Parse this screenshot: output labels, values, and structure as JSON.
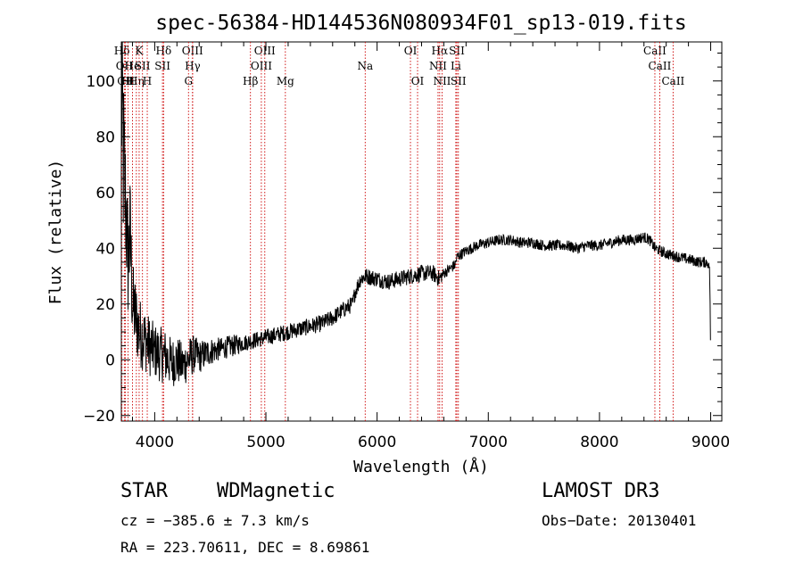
{
  "chart_data": {
    "type": "line",
    "title": "spec-56384-HD144536N080934F01_sp13-019.fits",
    "xlabel": "Wavelength (Å)",
    "ylabel": "Flux (relative)",
    "xlim": [
      3700,
      9100
    ],
    "ylim": [
      -22,
      114
    ],
    "x_ticks": [
      4000,
      5000,
      6000,
      7000,
      8000,
      9000
    ],
    "x_tick_labels": [
      "4000",
      "5000",
      "6000",
      "7000",
      "8000",
      "9000"
    ],
    "y_ticks": [
      -20,
      0,
      20,
      40,
      60,
      80,
      100
    ],
    "y_tick_labels": [
      "−20",
      "0",
      "20",
      "40",
      "60",
      "80",
      "100"
    ],
    "grid": false,
    "series": [
      {
        "name": "spectrum",
        "x": [
          3700,
          3720,
          3740,
          3760,
          3780,
          3800,
          3830,
          3860,
          3900,
          3950,
          4000,
          4050,
          4100,
          4150,
          4200,
          4250,
          4300,
          4350,
          4400,
          4500,
          4600,
          4700,
          4800,
          4900,
          5000,
          5100,
          5200,
          5300,
          5400,
          5500,
          5600,
          5700,
          5780,
          5800,
          5830,
          5850,
          5900,
          6000,
          6100,
          6200,
          6300,
          6400,
          6500,
          6560,
          6600,
          6700,
          6720,
          6800,
          6900,
          7000,
          7100,
          7200,
          7300,
          7400,
          7500,
          7600,
          7700,
          7800,
          7900,
          8000,
          8100,
          8200,
          8300,
          8400,
          8450,
          8500,
          8600,
          8700,
          8800,
          8900,
          8970,
          8990,
          9000
        ],
        "y": [
          100,
          70,
          55,
          35,
          45,
          20,
          15,
          10,
          8,
          5,
          3,
          2,
          1,
          -1,
          0,
          -2,
          0,
          2,
          1,
          3,
          4,
          5,
          6,
          7,
          8,
          9,
          10,
          11,
          12,
          13,
          15,
          18,
          20,
          24,
          27,
          29,
          30,
          29,
          28,
          29,
          30,
          31,
          31,
          29,
          31,
          34,
          37,
          39,
          41,
          42,
          43,
          43,
          42,
          42,
          41,
          41,
          41,
          40,
          41,
          41,
          42,
          43,
          43,
          44,
          43,
          40,
          38,
          37,
          36,
          35,
          35,
          33,
          7
        ],
        "noise": [
          50,
          35,
          25,
          22,
          22,
          16,
          14,
          13,
          12,
          11,
          10,
          10,
          10,
          9,
          9,
          8,
          8,
          7,
          6,
          5,
          4,
          4,
          3,
          3,
          3,
          3,
          3,
          3,
          3,
          3,
          3,
          3,
          3,
          3,
          3,
          3,
          3,
          3,
          3,
          3,
          3,
          3,
          3,
          3,
          2,
          2,
          2,
          2,
          2,
          2,
          2,
          2,
          2,
          2,
          2,
          2,
          2,
          2,
          2,
          2,
          2,
          2,
          2,
          2,
          2,
          2,
          2,
          2,
          2,
          2,
          2,
          1,
          1
        ]
      }
    ],
    "line_markers": [
      {
        "label": "Hδ",
        "wavelength": 3705,
        "row": 1
      },
      {
        "label": "OII",
        "wavelength": 3727,
        "row": 2
      },
      {
        "label": "CII",
        "wavelength": 3737,
        "row": 3
      },
      {
        "label": "HI",
        "wavelength": 3760,
        "row": 3
      },
      {
        "label": "He",
        "wavelength": 3800,
        "row": 2
      },
      {
        "label": "Hη",
        "wavelength": 3835,
        "row": 3
      },
      {
        "label": "K",
        "wavelength": 3860,
        "row": 1
      },
      {
        "label": "SII",
        "wavelength": 3890,
        "row": 2
      },
      {
        "label": "H",
        "wavelength": 3933,
        "row": 3
      },
      {
        "label": "Hδ",
        "wavelength": 4080,
        "row": 1
      },
      {
        "label": "SII",
        "wavelength": 4070,
        "row": 2
      },
      {
        "label": "OIII",
        "wavelength": 4340,
        "row": 1
      },
      {
        "label": "Hγ",
        "wavelength": 4341,
        "row": 2
      },
      {
        "label": "G",
        "wavelength": 4304,
        "row": 3
      },
      {
        "label": "Hβ",
        "wavelength": 4861,
        "row": 3
      },
      {
        "label": "OIII",
        "wavelength": 4990,
        "row": 1
      },
      {
        "label": "OIII",
        "wavelength": 4959,
        "row": 2
      },
      {
        "label": "Mg",
        "wavelength": 5175,
        "row": 3
      },
      {
        "label": "Na",
        "wavelength": 5893,
        "row": 2
      },
      {
        "label": "OI",
        "wavelength": 6300,
        "row": 1
      },
      {
        "label": "OI",
        "wavelength": 6364,
        "row": 3
      },
      {
        "label": "Hα",
        "wavelength": 6563,
        "row": 1
      },
      {
        "label": "NII",
        "wavelength": 6548,
        "row": 2
      },
      {
        "label": "NII",
        "wavelength": 6584,
        "row": 3
      },
      {
        "label": "SII",
        "wavelength": 6717,
        "row": 1
      },
      {
        "label": "Li",
        "wavelength": 6708,
        "row": 2
      },
      {
        "label": "SII",
        "wavelength": 6731,
        "row": 3
      },
      {
        "label": "CaII",
        "wavelength": 8498,
        "row": 1
      },
      {
        "label": "CaII",
        "wavelength": 8542,
        "row": 2
      },
      {
        "label": "CaII",
        "wavelength": 8662,
        "row": 3
      }
    ],
    "marker_color": "#cc0000"
  },
  "info": {
    "class": "STAR",
    "subclass": "WDMagnetic",
    "survey": "LAMOST DR3",
    "cz": "cz = −385.6 ± 7.3 km/s",
    "obs_date": "Obs−Date: 20130401",
    "coords": "RA = 223.70611, DEC =   8.69861"
  }
}
